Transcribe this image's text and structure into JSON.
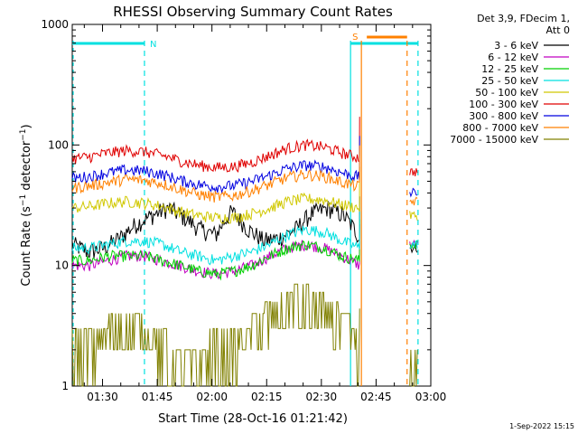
{
  "chart_data": {
    "type": "line",
    "title": "RHESSI Observing Summary Count Rates",
    "xlabel": "Start Time (28-Oct-16 01:21:42)",
    "ylabel": "Count Rate (s⁻¹ detector⁻¹)",
    "ylabel_parts": {
      "main": "Count Rate (s",
      "sup1": "−1",
      "mid": " detector",
      "sup2": "−1",
      "end": ")"
    },
    "yscale": "log",
    "ylim": [
      1,
      1000
    ],
    "xlim": [
      "01:21:42",
      "03:00:00"
    ],
    "x_ticks": [
      "01:30",
      "01:45",
      "02:00",
      "02:15",
      "02:30",
      "02:45",
      "03:00"
    ],
    "y_ticks": [
      "1",
      "10",
      "100",
      "1000"
    ],
    "legend_header": [
      "Det 3,9, FDecim 1,",
      "Att 0"
    ],
    "legend_position": "right",
    "series": [
      {
        "name": "3 - 6 keV",
        "color": "#000000",
        "values": [
          15,
          13,
          14,
          17,
          22,
          26,
          30,
          25,
          20,
          18,
          28,
          20,
          16,
          17,
          20,
          27,
          30,
          26,
          17,
          15,
          14
        ]
      },
      {
        "name": "6 - 12 keV",
        "color": "#c000c0",
        "values": [
          10,
          10,
          11,
          12,
          12,
          11,
          10,
          9,
          8.5,
          9,
          10,
          12,
          14,
          15,
          14,
          12,
          10,
          15,
          15
        ]
      },
      {
        "name": "12 - 25 keV",
        "color": "#00d000",
        "values": [
          11,
          11,
          12,
          12,
          12,
          11,
          10,
          9,
          8.5,
          9,
          10,
          12,
          14,
          15,
          14,
          12,
          11,
          15,
          15
        ]
      },
      {
        "name": "25 - 50 keV",
        "color": "#00e0e0",
        "values": [
          14,
          14,
          15,
          16,
          16,
          15,
          13,
          12,
          11,
          12,
          13,
          15,
          18,
          20,
          19,
          16,
          14,
          16,
          15
        ]
      },
      {
        "name": "50 - 100 keV",
        "color": "#d0c800",
        "values": [
          30,
          31,
          33,
          34,
          33,
          31,
          28,
          26,
          25,
          25,
          27,
          30,
          34,
          36,
          35,
          32,
          30,
          27,
          26
        ]
      },
      {
        "name": "100 - 300 keV",
        "color": "#e00000",
        "values": [
          77,
          80,
          86,
          90,
          88,
          82,
          74,
          68,
          65,
          66,
          72,
          82,
          94,
          100,
          96,
          86,
          78,
          62,
          60
        ]
      },
      {
        "name": "300 - 800 keV",
        "color": "#0000e0",
        "values": [
          53,
          55,
          59,
          62,
          61,
          57,
          51,
          47,
          45,
          46,
          50,
          56,
          64,
          68,
          66,
          59,
          54,
          42,
          40
        ]
      },
      {
        "name": "800 - 7000 keV",
        "color": "#ff8000",
        "values": [
          44,
          46,
          49,
          52,
          51,
          48,
          43,
          39,
          37,
          38,
          42,
          47,
          54,
          57,
          55,
          49,
          45,
          35,
          34
        ]
      },
      {
        "name": "7000 - 15000 keV",
        "color": "#808000",
        "values": [
          2,
          2,
          2.5,
          3,
          2.5,
          2,
          1.5,
          1.5,
          2,
          2,
          2.5,
          3.5,
          4.5,
          5,
          4,
          3,
          2,
          1.5,
          1.5
        ]
      }
    ],
    "markers": [
      {
        "label": "N",
        "color": "#00e0e0"
      },
      {
        "label": "S",
        "color": "#ff8000"
      }
    ],
    "timestamp": "1-Sep-2022 15:15"
  }
}
